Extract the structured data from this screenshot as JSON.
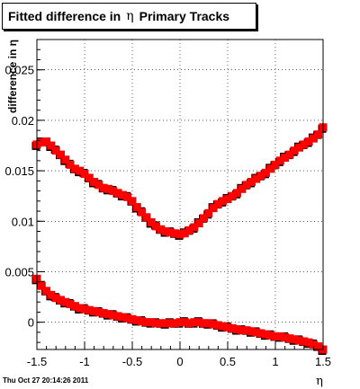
{
  "footer": "Thu Oct 27 20:14:26 2011",
  "chart_data": {
    "type": "scatter",
    "title_prefix": "Fitted difference in",
    "title_symbol": "η",
    "title_suffix": "Primary Tracks",
    "xlabel": "η",
    "ylabel": "difference in η",
    "xlim": [
      -1.5,
      1.5
    ],
    "ylim": [
      -0.0027,
      0.028
    ],
    "x_ticks": [
      "-1.5",
      "-1",
      "-0.5",
      "0",
      "0.5",
      "1",
      "1.5"
    ],
    "y_ticks": [
      "0",
      "0.005",
      "0.01",
      "0.015",
      "0.02",
      "0.025"
    ],
    "grid": true,
    "marker_colors": {
      "black": "#000000",
      "red": "#ff0000"
    },
    "series_upper": [
      [
        -1.5,
        0.0176
      ],
      [
        -1.45,
        0.0178
      ],
      [
        -1.4,
        0.0179
      ],
      [
        -1.35,
        0.0175
      ],
      [
        -1.3,
        0.017
      ],
      [
        -1.25,
        0.0166
      ],
      [
        -1.2,
        0.0161
      ],
      [
        -1.15,
        0.0156
      ],
      [
        -1.1,
        0.0152
      ],
      [
        -1.05,
        0.015
      ],
      [
        -1.0,
        0.0147
      ],
      [
        -0.95,
        0.0143
      ],
      [
        -0.9,
        0.0139
      ],
      [
        -0.85,
        0.0136
      ],
      [
        -0.8,
        0.0133
      ],
      [
        -0.75,
        0.0132
      ],
      [
        -0.7,
        0.013
      ],
      [
        -0.65,
        0.0128
      ],
      [
        -0.6,
        0.0126
      ],
      [
        -0.55,
        0.0124
      ],
      [
        -0.5,
        0.012
      ],
      [
        -0.45,
        0.0114
      ],
      [
        -0.4,
        0.0109
      ],
      [
        -0.35,
        0.0104
      ],
      [
        -0.3,
        0.0099
      ],
      [
        -0.25,
        0.0095
      ],
      [
        -0.2,
        0.0092
      ],
      [
        -0.15,
        0.009
      ],
      [
        -0.1,
        0.0089
      ],
      [
        -0.05,
        0.0088
      ],
      [
        0.0,
        0.0087
      ],
      [
        0.05,
        0.0088
      ],
      [
        0.1,
        0.0091
      ],
      [
        0.15,
        0.0094
      ],
      [
        0.2,
        0.0098
      ],
      [
        0.25,
        0.0103
      ],
      [
        0.3,
        0.0108
      ],
      [
        0.35,
        0.0113
      ],
      [
        0.4,
        0.0117
      ],
      [
        0.45,
        0.012
      ],
      [
        0.5,
        0.0122
      ],
      [
        0.55,
        0.0125
      ],
      [
        0.6,
        0.0128
      ],
      [
        0.65,
        0.0132
      ],
      [
        0.7,
        0.0136
      ],
      [
        0.75,
        0.0139
      ],
      [
        0.8,
        0.0142
      ],
      [
        0.85,
        0.0145
      ],
      [
        0.9,
        0.0148
      ],
      [
        0.95,
        0.0152
      ],
      [
        1.0,
        0.0156
      ],
      [
        1.05,
        0.016
      ],
      [
        1.1,
        0.0163
      ],
      [
        1.15,
        0.0166
      ],
      [
        1.2,
        0.017
      ],
      [
        1.25,
        0.0173
      ],
      [
        1.3,
        0.0176
      ],
      [
        1.35,
        0.0179
      ],
      [
        1.4,
        0.0182
      ],
      [
        1.45,
        0.0186
      ],
      [
        1.5,
        0.0193
      ]
    ],
    "series_lower": [
      [
        -1.5,
        0.0043
      ],
      [
        -1.45,
        0.0036
      ],
      [
        -1.4,
        0.0031
      ],
      [
        -1.35,
        0.0027
      ],
      [
        -1.3,
        0.0024
      ],
      [
        -1.25,
        0.0022
      ],
      [
        -1.2,
        0.002
      ],
      [
        -1.15,
        0.0018
      ],
      [
        -1.1,
        0.0016
      ],
      [
        -1.05,
        0.0014
      ],
      [
        -1.0,
        0.0013
      ],
      [
        -0.95,
        0.0012
      ],
      [
        -0.9,
        0.0011
      ],
      [
        -0.85,
        0.001
      ],
      [
        -0.8,
        0.0009
      ],
      [
        -0.75,
        0.0008
      ],
      [
        -0.7,
        0.0007
      ],
      [
        -0.65,
        0.0006
      ],
      [
        -0.6,
        0.0005
      ],
      [
        -0.55,
        0.0004
      ],
      [
        -0.5,
        0.0003
      ],
      [
        -0.45,
        0.0002
      ],
      [
        -0.4,
        0.0001
      ],
      [
        -0.35,
        0.0
      ],
      [
        -0.3,
        0.0
      ],
      [
        -0.25,
        -0.0001
      ],
      [
        -0.2,
        -0.0001
      ],
      [
        -0.15,
        -0.0001
      ],
      [
        -0.1,
        -0.0001
      ],
      [
        -0.05,
        -0.0001
      ],
      [
        0.0,
        0.0
      ],
      [
        0.05,
        0.0
      ],
      [
        0.1,
        -0.0001
      ],
      [
        0.15,
        0.0
      ],
      [
        0.2,
        0.0
      ],
      [
        0.25,
        -0.0001
      ],
      [
        0.3,
        -0.0001
      ],
      [
        0.35,
        -0.0002
      ],
      [
        0.4,
        -0.0003
      ],
      [
        0.45,
        -0.0004
      ],
      [
        0.5,
        -0.0005
      ],
      [
        0.55,
        -0.0006
      ],
      [
        0.6,
        -0.0007
      ],
      [
        0.65,
        -0.0008
      ],
      [
        0.7,
        -0.0008
      ],
      [
        0.75,
        -0.0009
      ],
      [
        0.8,
        -0.001
      ],
      [
        0.85,
        -0.0011
      ],
      [
        0.9,
        -0.0012
      ],
      [
        0.95,
        -0.0013
      ],
      [
        1.0,
        -0.0014
      ],
      [
        1.05,
        -0.0014
      ],
      [
        1.1,
        -0.0015
      ],
      [
        1.15,
        -0.0016
      ],
      [
        1.2,
        -0.0017
      ],
      [
        1.25,
        -0.0018
      ],
      [
        1.3,
        -0.0019
      ],
      [
        1.35,
        -0.002
      ],
      [
        1.4,
        -0.0022
      ],
      [
        1.45,
        -0.0024
      ],
      [
        1.5,
        -0.0027
      ]
    ]
  }
}
